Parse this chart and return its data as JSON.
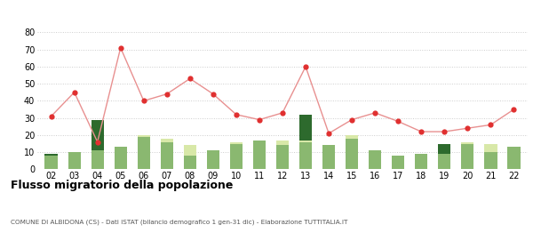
{
  "years": [
    "02",
    "03",
    "04",
    "05",
    "06",
    "07",
    "08",
    "09",
    "10",
    "11",
    "12",
    "13",
    "14",
    "15",
    "16",
    "17",
    "18",
    "19",
    "20",
    "21",
    "22"
  ],
  "iscritti_altri_comuni": [
    8,
    10,
    11,
    13,
    19,
    16,
    8,
    11,
    15,
    17,
    14,
    16,
    14,
    18,
    11,
    8,
    9,
    9,
    15,
    10,
    13
  ],
  "iscritti_estero": [
    0,
    0,
    0,
    0,
    1,
    2,
    6,
    0,
    1,
    0,
    3,
    1,
    0,
    2,
    0,
    0,
    0,
    0,
    1,
    5,
    0
  ],
  "iscritti_altri": [
    1,
    0,
    18,
    0,
    0,
    0,
    0,
    0,
    0,
    0,
    0,
    15,
    0,
    0,
    0,
    0,
    0,
    6,
    0,
    0,
    0
  ],
  "cancellati": [
    31,
    45,
    16,
    71,
    40,
    44,
    53,
    44,
    32,
    29,
    33,
    60,
    21,
    29,
    33,
    28,
    22,
    22,
    24,
    26,
    35
  ],
  "color_iscritti_comuni": "#8ab870",
  "color_iscritti_estero": "#d8e8a8",
  "color_iscritti_altri": "#2d6a2d",
  "color_cancellati_marker": "#e03030",
  "color_cancellati_line": "#e89090",
  "ylim": [
    0,
    80
  ],
  "yticks": [
    0,
    10,
    20,
    30,
    40,
    50,
    60,
    70,
    80
  ],
  "title": "Flusso migratorio della popolazione",
  "subtitle": "COMUNE DI ALBIDONA (CS) - Dati ISTAT (bilancio demografico 1 gen-31 dic) - Elaborazione TUTTITALIA.IT",
  "bg_color": "#ffffff",
  "grid_color": "#cccccc"
}
